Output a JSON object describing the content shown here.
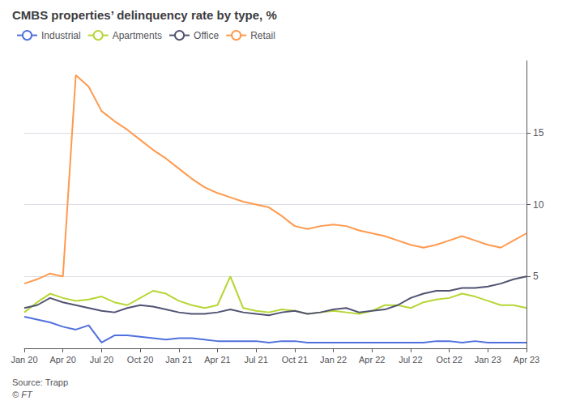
{
  "chart_data": {
    "type": "line",
    "title": "CMBS properties’ delinquency rate by type, %",
    "annotations": [
      "Source: Trapp",
      "© FT"
    ],
    "categories": [
      "Jan 20",
      null,
      null,
      "Apr 20",
      null,
      null,
      "Jul 20",
      null,
      null,
      "Oct 20",
      null,
      null,
      "Jan 21",
      null,
      null,
      "Apr 21",
      null,
      null,
      "Jul 21",
      null,
      null,
      "Oct 21",
      null,
      null,
      "Jan 22",
      null,
      null,
      "Apr 22",
      null,
      null,
      "Jul 22",
      null,
      null,
      "Oct 22",
      null,
      null,
      "Jan 23",
      null,
      null,
      "Apr 23"
    ],
    "series": [
      {
        "name": "Industrial",
        "values": [
          2.2,
          2.0,
          1.8,
          1.5,
          1.3,
          1.6,
          0.4,
          0.9,
          0.9,
          0.8,
          0.7,
          0.6,
          0.7,
          0.7,
          0.6,
          0.5,
          0.5,
          0.5,
          0.5,
          0.4,
          0.5,
          0.5,
          0.4,
          0.4,
          0.4,
          0.4,
          0.4,
          0.4,
          0.4,
          0.4,
          0.4,
          0.4,
          0.5,
          0.5,
          0.4,
          0.5,
          0.4,
          0.4,
          0.4,
          0.4
        ]
      },
      {
        "name": "Apartments",
        "values": [
          2.5,
          3.2,
          3.8,
          3.5,
          3.3,
          3.4,
          3.6,
          3.2,
          3.0,
          3.5,
          4.0,
          3.8,
          3.3,
          3.0,
          2.8,
          3.0,
          5.0,
          2.8,
          2.6,
          2.5,
          2.7,
          2.6,
          2.4,
          2.5,
          2.6,
          2.5,
          2.4,
          2.6,
          3.0,
          3.0,
          2.8,
          3.2,
          3.4,
          3.5,
          3.8,
          3.6,
          3.3,
          3.0,
          3.0,
          2.8
        ]
      },
      {
        "name": "Office",
        "values": [
          2.8,
          3.0,
          3.5,
          3.2,
          3.0,
          2.8,
          2.6,
          2.5,
          2.8,
          3.0,
          2.9,
          2.7,
          2.5,
          2.4,
          2.4,
          2.5,
          2.7,
          2.5,
          2.4,
          2.3,
          2.5,
          2.6,
          2.4,
          2.5,
          2.7,
          2.8,
          2.5,
          2.6,
          2.7,
          3.0,
          3.5,
          3.8,
          4.0,
          4.0,
          4.2,
          4.2,
          4.3,
          4.5,
          4.8,
          5.0
        ]
      },
      {
        "name": "Retail",
        "values": [
          4.5,
          4.8,
          5.2,
          5.0,
          19.0,
          18.2,
          16.5,
          15.8,
          15.2,
          14.5,
          13.8,
          13.2,
          12.5,
          11.8,
          11.2,
          10.8,
          10.5,
          10.2,
          10.0,
          9.8,
          9.2,
          8.5,
          8.3,
          8.5,
          8.6,
          8.5,
          8.2,
          8.0,
          7.8,
          7.5,
          7.2,
          7.0,
          7.2,
          7.5,
          7.8,
          7.5,
          7.2,
          7.0,
          7.5,
          8.0
        ]
      }
    ],
    "ylim": [
      0,
      20
    ],
    "yticks": [
      5,
      10,
      15
    ],
    "grid": true,
    "legend": "upper left"
  }
}
